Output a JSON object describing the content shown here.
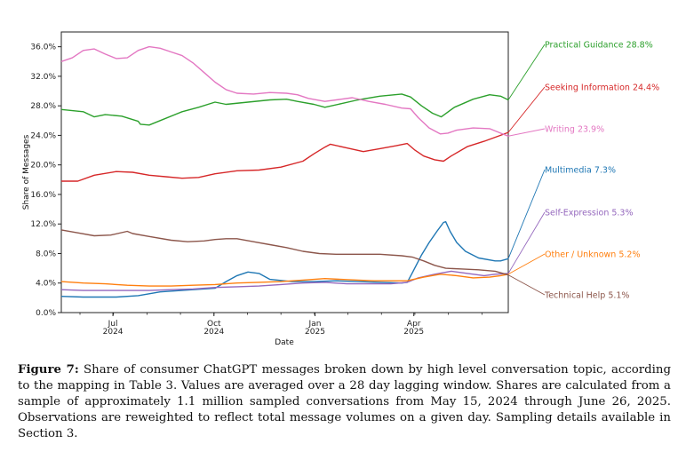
{
  "chart_data": {
    "type": "line",
    "xlabel": "Date",
    "ylabel": "Share of Messages",
    "ylim": [
      0,
      38
    ],
    "x_range": [
      "2024-05-15",
      "2025-06-26"
    ],
    "y_ticks": [
      "0.0%",
      "4.0%",
      "8.0%",
      "12.0%",
      "16.0%",
      "20.0%",
      "24.0%",
      "28.0%",
      "32.0%",
      "36.0%"
    ],
    "y_tick_values": [
      0,
      4,
      8,
      12,
      16,
      20,
      24,
      28,
      32,
      36
    ],
    "x_ticks": [
      {
        "month": "Jul",
        "year": "2024",
        "day": 47
      },
      {
        "month": "Oct",
        "year": "2024",
        "day": 139
      },
      {
        "month": "Jan",
        "year": "2025",
        "day": 231
      },
      {
        "month": "Apr",
        "year": "2025",
        "day": 321
      }
    ],
    "x_span_days": 407,
    "grid": false,
    "series": [
      {
        "name": "Practical Guidance",
        "final": "28.8%",
        "color": "#2ca02c",
        "points": [
          [
            0,
            27.5
          ],
          [
            20,
            27.2
          ],
          [
            30,
            26.5
          ],
          [
            40,
            26.8
          ],
          [
            55,
            26.6
          ],
          [
            70,
            25.9
          ],
          [
            72,
            25.5
          ],
          [
            80,
            25.4
          ],
          [
            90,
            26.0
          ],
          [
            110,
            27.2
          ],
          [
            125,
            27.8
          ],
          [
            140,
            28.5
          ],
          [
            150,
            28.2
          ],
          [
            170,
            28.5
          ],
          [
            190,
            28.8
          ],
          [
            205,
            28.9
          ],
          [
            215,
            28.6
          ],
          [
            230,
            28.2
          ],
          [
            240,
            27.8
          ],
          [
            255,
            28.3
          ],
          [
            270,
            28.8
          ],
          [
            290,
            29.3
          ],
          [
            310,
            29.6
          ],
          [
            318,
            29.2
          ],
          [
            328,
            28.0
          ],
          [
            338,
            27.0
          ],
          [
            346,
            26.5
          ],
          [
            358,
            27.8
          ],
          [
            375,
            28.9
          ],
          [
            390,
            29.5
          ],
          [
            400,
            29.3
          ],
          [
            407,
            28.8
          ]
        ]
      },
      {
        "name": "Seeking Information",
        "final": "24.4%",
        "color": "#d62728",
        "points": [
          [
            0,
            17.8
          ],
          [
            15,
            17.8
          ],
          [
            30,
            18.6
          ],
          [
            50,
            19.1
          ],
          [
            65,
            19.0
          ],
          [
            80,
            18.6
          ],
          [
            95,
            18.4
          ],
          [
            110,
            18.2
          ],
          [
            125,
            18.3
          ],
          [
            140,
            18.8
          ],
          [
            160,
            19.2
          ],
          [
            180,
            19.3
          ],
          [
            200,
            19.7
          ],
          [
            220,
            20.5
          ],
          [
            230,
            21.5
          ],
          [
            240,
            22.4
          ],
          [
            245,
            22.8
          ],
          [
            260,
            22.3
          ],
          [
            275,
            21.8
          ],
          [
            290,
            22.2
          ],
          [
            305,
            22.6
          ],
          [
            315,
            22.9
          ],
          [
            322,
            22.0
          ],
          [
            330,
            21.2
          ],
          [
            340,
            20.7
          ],
          [
            348,
            20.5
          ],
          [
            355,
            21.2
          ],
          [
            370,
            22.5
          ],
          [
            385,
            23.2
          ],
          [
            400,
            24.0
          ],
          [
            407,
            24.4
          ]
        ]
      },
      {
        "name": "Writing",
        "final": "23.9%",
        "color": "#e377c2",
        "points": [
          [
            0,
            34.0
          ],
          [
            10,
            34.5
          ],
          [
            20,
            35.5
          ],
          [
            30,
            35.7
          ],
          [
            40,
            35.0
          ],
          [
            50,
            34.4
          ],
          [
            60,
            34.5
          ],
          [
            70,
            35.5
          ],
          [
            80,
            36.0
          ],
          [
            90,
            35.8
          ],
          [
            100,
            35.3
          ],
          [
            110,
            34.8
          ],
          [
            120,
            33.8
          ],
          [
            130,
            32.5
          ],
          [
            140,
            31.2
          ],
          [
            150,
            30.2
          ],
          [
            160,
            29.7
          ],
          [
            175,
            29.6
          ],
          [
            190,
            29.8
          ],
          [
            205,
            29.7
          ],
          [
            215,
            29.5
          ],
          [
            225,
            29.0
          ],
          [
            240,
            28.6
          ],
          [
            255,
            28.9
          ],
          [
            265,
            29.1
          ],
          [
            280,
            28.6
          ],
          [
            295,
            28.2
          ],
          [
            310,
            27.7
          ],
          [
            318,
            27.6
          ],
          [
            325,
            26.4
          ],
          [
            335,
            25.0
          ],
          [
            345,
            24.2
          ],
          [
            352,
            24.3
          ],
          [
            360,
            24.7
          ],
          [
            375,
            25.0
          ],
          [
            390,
            24.9
          ],
          [
            400,
            24.3
          ],
          [
            407,
            23.9
          ]
        ]
      },
      {
        "name": "Multimedia",
        "final": "7.3%",
        "color": "#1f77b4",
        "points": [
          [
            0,
            2.2
          ],
          [
            20,
            2.1
          ],
          [
            50,
            2.1
          ],
          [
            70,
            2.3
          ],
          [
            90,
            2.8
          ],
          [
            120,
            3.1
          ],
          [
            140,
            3.3
          ],
          [
            150,
            4.2
          ],
          [
            160,
            5.0
          ],
          [
            170,
            5.5
          ],
          [
            180,
            5.3
          ],
          [
            190,
            4.5
          ],
          [
            210,
            4.2
          ],
          [
            230,
            4.2
          ],
          [
            250,
            4.3
          ],
          [
            270,
            4.2
          ],
          [
            290,
            4.1
          ],
          [
            310,
            4.0
          ],
          [
            315,
            4.1
          ],
          [
            320,
            5.5
          ],
          [
            328,
            7.8
          ],
          [
            335,
            9.5
          ],
          [
            342,
            11.0
          ],
          [
            348,
            12.2
          ],
          [
            350,
            12.3
          ],
          [
            354,
            11.0
          ],
          [
            360,
            9.5
          ],
          [
            368,
            8.3
          ],
          [
            380,
            7.4
          ],
          [
            395,
            7.0
          ],
          [
            400,
            7.0
          ],
          [
            407,
            7.3
          ]
        ]
      },
      {
        "name": "Self-Expression",
        "final": "5.3%",
        "color": "#9467bd",
        "points": [
          [
            0,
            3.1
          ],
          [
            20,
            3.0
          ],
          [
            40,
            3.0
          ],
          [
            60,
            3.0
          ],
          [
            80,
            3.0
          ],
          [
            100,
            3.1
          ],
          [
            120,
            3.2
          ],
          [
            140,
            3.4
          ],
          [
            160,
            3.5
          ],
          [
            180,
            3.6
          ],
          [
            200,
            3.8
          ],
          [
            220,
            4.0
          ],
          [
            240,
            4.1
          ],
          [
            260,
            3.9
          ],
          [
            280,
            3.9
          ],
          [
            300,
            3.9
          ],
          [
            315,
            4.1
          ],
          [
            325,
            4.7
          ],
          [
            340,
            5.2
          ],
          [
            355,
            5.6
          ],
          [
            370,
            5.3
          ],
          [
            385,
            5.0
          ],
          [
            395,
            5.2
          ],
          [
            407,
            5.3
          ]
        ]
      },
      {
        "name": "Other / Unknown",
        "final": "5.2%",
        "color": "#ff7f0e",
        "points": [
          [
            0,
            4.2
          ],
          [
            20,
            4.0
          ],
          [
            40,
            3.9
          ],
          [
            60,
            3.7
          ],
          [
            80,
            3.6
          ],
          [
            100,
            3.6
          ],
          [
            120,
            3.7
          ],
          [
            140,
            3.8
          ],
          [
            160,
            4.0
          ],
          [
            180,
            4.1
          ],
          [
            200,
            4.2
          ],
          [
            220,
            4.4
          ],
          [
            240,
            4.6
          ],
          [
            255,
            4.5
          ],
          [
            270,
            4.4
          ],
          [
            285,
            4.3
          ],
          [
            300,
            4.3
          ],
          [
            315,
            4.3
          ],
          [
            330,
            4.8
          ],
          [
            345,
            5.2
          ],
          [
            360,
            5.0
          ],
          [
            375,
            4.7
          ],
          [
            390,
            4.8
          ],
          [
            400,
            5.0
          ],
          [
            407,
            5.2
          ]
        ]
      },
      {
        "name": "Technical Help",
        "final": "5.1%",
        "color": "#8c564b",
        "points": [
          [
            0,
            11.2
          ],
          [
            15,
            10.8
          ],
          [
            30,
            10.4
          ],
          [
            45,
            10.5
          ],
          [
            60,
            11.0
          ],
          [
            65,
            10.7
          ],
          [
            80,
            10.3
          ],
          [
            100,
            9.8
          ],
          [
            115,
            9.6
          ],
          [
            130,
            9.7
          ],
          [
            140,
            9.9
          ],
          [
            150,
            10.0
          ],
          [
            160,
            10.0
          ],
          [
            175,
            9.6
          ],
          [
            190,
            9.2
          ],
          [
            205,
            8.8
          ],
          [
            220,
            8.3
          ],
          [
            235,
            8.0
          ],
          [
            250,
            7.9
          ],
          [
            270,
            7.9
          ],
          [
            290,
            7.9
          ],
          [
            310,
            7.7
          ],
          [
            320,
            7.5
          ],
          [
            330,
            7.0
          ],
          [
            340,
            6.4
          ],
          [
            350,
            6.0
          ],
          [
            365,
            5.9
          ],
          [
            380,
            5.8
          ],
          [
            395,
            5.6
          ],
          [
            407,
            5.1
          ]
        ]
      }
    ]
  },
  "legend": [
    {
      "label": "Practical Guidance",
      "value": "28.8%"
    },
    {
      "label": "Seeking Information",
      "value": "24.4%"
    },
    {
      "label": "Writing",
      "value": "23.9%"
    },
    {
      "label": "Multimedia",
      "value": "7.3%"
    },
    {
      "label": "Self-Expression",
      "value": "5.3%"
    },
    {
      "label": "Other / Unknown",
      "value": "5.2%"
    },
    {
      "label": "Technical Help",
      "value": "5.1%"
    }
  ],
  "caption": {
    "figure_label": "Figure 7:",
    "text": "Share of consumer ChatGPT messages broken down by high level conversation topic, according to the mapping in Table 3. Values are averaged over a 28 day lagging window. Shares are calculated from a sample of approximately 1.1 million sampled conversations from May 15, 2024 through June 26, 2025. Observations are reweighted to reflect total message volumes on a given day. Sampling details available in Section 3."
  }
}
